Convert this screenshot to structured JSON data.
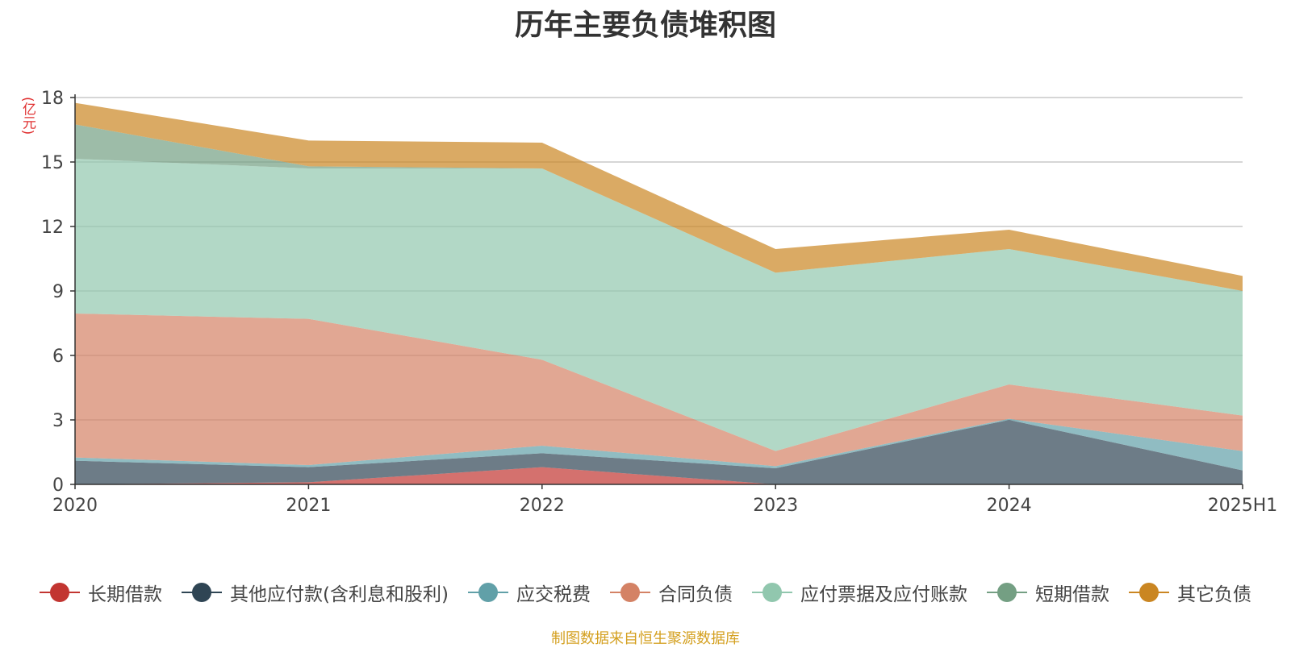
{
  "chart_data": {
    "type": "area",
    "stacked": true,
    "title": "历年主要负债堆积图",
    "unit": "(亿元)",
    "categories": [
      "2020",
      "2021",
      "2022",
      "2023",
      "2024",
      "2025H1"
    ],
    "ylim": [
      0,
      18
    ],
    "yticks": [
      0,
      3,
      6,
      9,
      12,
      15,
      18
    ],
    "grid": true,
    "legend_position": "bottom",
    "series": [
      {
        "name": "长期借款",
        "values": [
          0.0,
          0.1,
          0.8,
          0.0,
          0.0,
          0.0
        ],
        "color": "#c23531"
      },
      {
        "name": "其他应付款(含利息和股利)",
        "values": [
          1.1,
          0.7,
          0.65,
          0.75,
          3.0,
          0.65
        ],
        "color": "#2f4554"
      },
      {
        "name": "应交税费",
        "values": [
          0.15,
          0.1,
          0.35,
          0.1,
          0.05,
          0.9
        ],
        "color": "#61a0a8"
      },
      {
        "name": "合同负债",
        "values": [
          6.7,
          6.8,
          4.0,
          0.7,
          1.6,
          1.65
        ],
        "color": "#d48265"
      },
      {
        "name": "应付票据及应付账款",
        "values": [
          7.2,
          7.0,
          8.9,
          8.3,
          6.3,
          5.8
        ],
        "color": "#91c7ae"
      },
      {
        "name": "短期借款",
        "values": [
          1.6,
          0.1,
          0.0,
          0.0,
          0.0,
          0.0
        ],
        "color": "#749f83"
      },
      {
        "name": "其它负债",
        "values": [
          1.0,
          1.2,
          1.2,
          1.1,
          0.9,
          0.7
        ],
        "color": "#ca8622"
      }
    ]
  },
  "source": "制图数据来自恒生聚源数据库"
}
